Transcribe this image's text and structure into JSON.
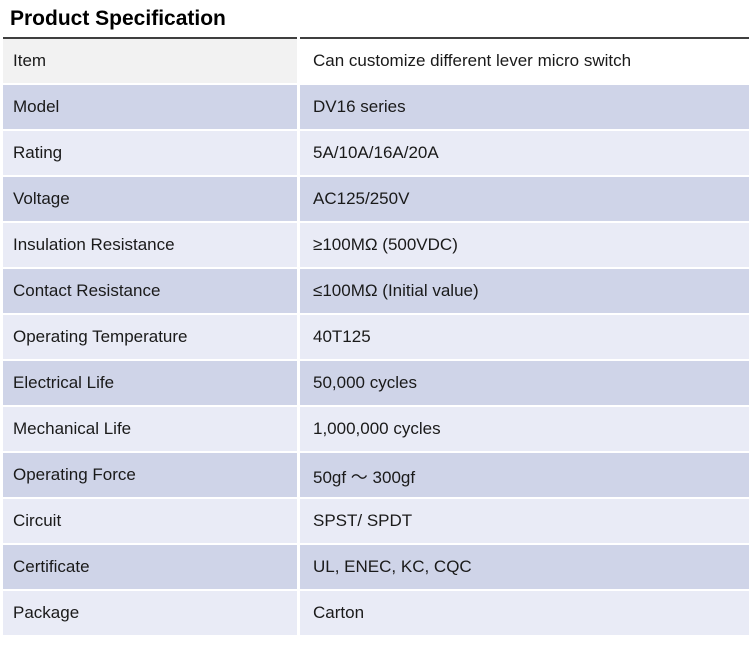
{
  "page": {
    "title": "Product Specification"
  },
  "colors": {
    "text": "#1a1a1a",
    "table_top_border": "#3f3f3f",
    "row_header_label_bg": "#f2f2f2",
    "row_header_value_bg": "#ffffff",
    "row_even_bg": "#cfd4e8",
    "row_odd_bg": "#e9ebf6"
  },
  "table": {
    "rows": [
      {
        "label": "Item",
        "value": "Can customize different lever micro switch"
      },
      {
        "label": "Model",
        "value": "DV16 series"
      },
      {
        "label": "Rating",
        "value": "5A/10A/16A/20A"
      },
      {
        "label": "Voltage",
        "value": "AC125/250V"
      },
      {
        "label": "Insulation Resistance",
        "value": "≥100MΩ (500VDC)"
      },
      {
        "label": "Contact Resistance",
        "value": "≤100MΩ (Initial value)"
      },
      {
        "label": "Operating Temperature",
        "value": "40T125"
      },
      {
        "label": "Electrical Life",
        "value": "50,000 cycles"
      },
      {
        "label": "Mechanical Life",
        "value": "1,000,000 cycles"
      },
      {
        "label": "Operating Force",
        "value": "50gf ～ 300gf"
      },
      {
        "label": "Circuit",
        "value": "SPST/ SPDT"
      },
      {
        "label": "Certificate",
        "value": "UL, ENEC, KC, CQC"
      },
      {
        "label": "Package",
        "value": "Carton"
      }
    ]
  }
}
